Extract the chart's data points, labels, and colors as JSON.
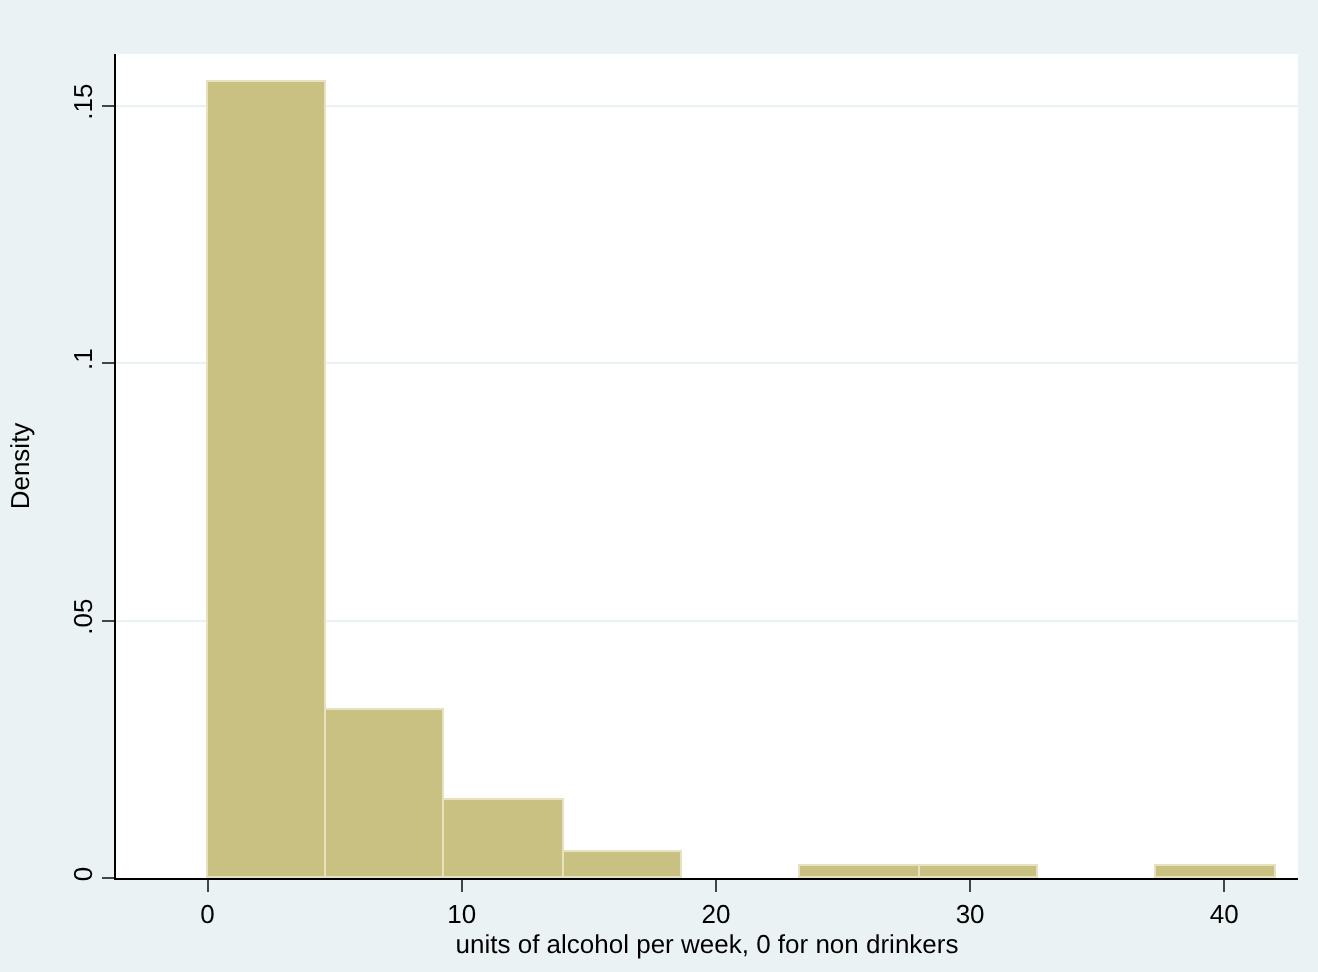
{
  "chart_data": {
    "type": "histogram",
    "xlabel": "units of alcohol per week, 0 for non drinkers",
    "ylabel": "Density",
    "bins": [
      0,
      4.667,
      9.333,
      14,
      18.667,
      23.333,
      28,
      32.667,
      37.333,
      42
    ],
    "values": [
      0.1546,
      0.0325,
      0.015,
      0.005,
      0,
      0.0023,
      0.0023,
      0,
      0.0023
    ],
    "color": "#c9c181",
    "xlim": [
      -3.6,
      42.9
    ],
    "xticks": [
      0,
      10,
      20,
      30,
      40
    ],
    "ylim": [
      0,
      0.16
    ],
    "yticks": [
      {
        "value": 0,
        "label": "0"
      },
      {
        "value": 0.05,
        "label": ".05"
      },
      {
        "value": 0.1,
        "label": ".1"
      },
      {
        "value": 0.15,
        "label": ".15"
      }
    ],
    "grid": "y"
  }
}
